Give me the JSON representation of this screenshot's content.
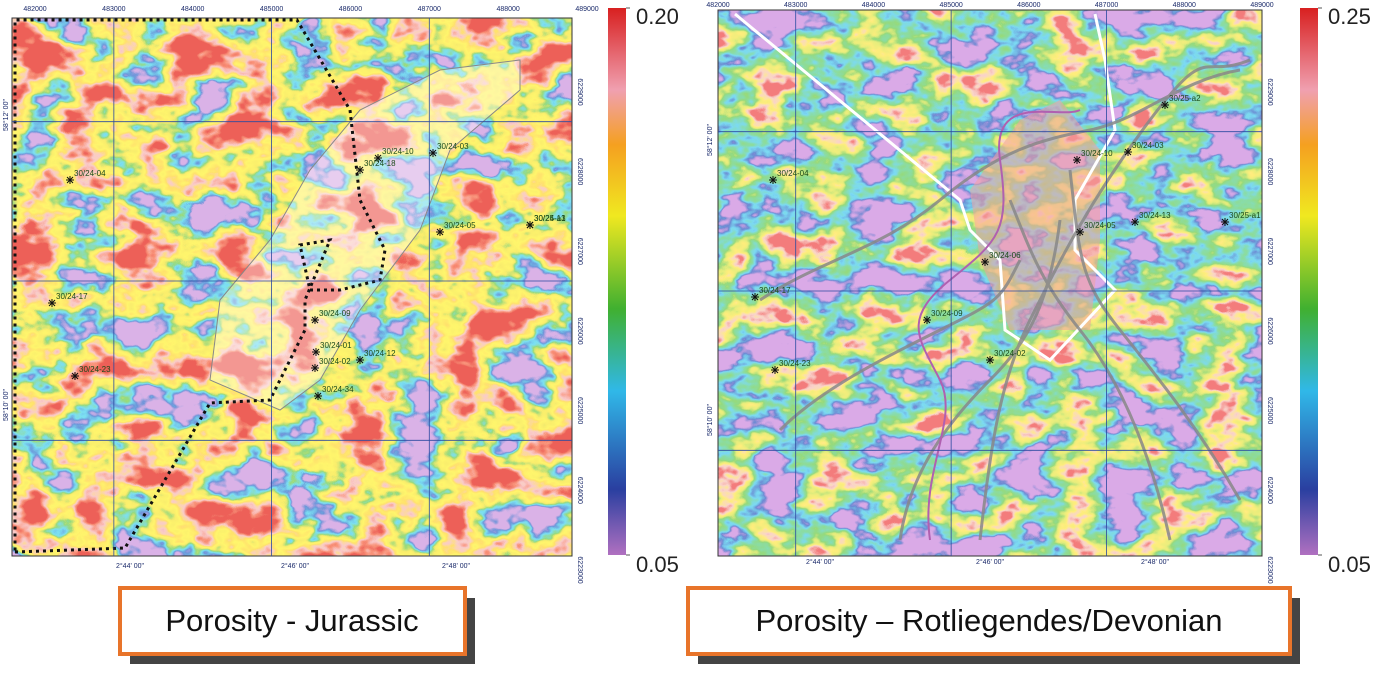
{
  "panels": [
    {
      "caption": "Porosity - Jurassic",
      "colorbar": {
        "top": {
          "value": 0.2,
          "label": "0.20"
        },
        "bottom": {
          "value": 0.05,
          "label": "0.05"
        }
      },
      "eastings": [
        482000,
        483000,
        484000,
        485000,
        486000,
        487000,
        488000,
        489000
      ],
      "northings": [
        6229000,
        6228000,
        6227000,
        6226000,
        6225000,
        6224000,
        6223000
      ],
      "longitudes": [
        "2°44' 00\"",
        "2°46' 00\"",
        "2°48' 00\""
      ],
      "latitudes": [
        "58°12' 00\"",
        "58°10' 00\""
      ],
      "wells": [
        "30/24-04",
        "30/24-17",
        "30/24-23",
        "30/24-10",
        "30/24-03",
        "30/24-18",
        "30/24-05",
        "30/24-13",
        "30/25-a1",
        "30/24-09",
        "30/24-01",
        "30/24-02",
        "30/24-12",
        "30/24-34"
      ]
    },
    {
      "caption": "Porosity – Rotliegendes/Devonian",
      "colorbar": {
        "top": {
          "value": 0.25,
          "label": "0.25"
        },
        "bottom": {
          "value": 0.05,
          "label": "0.05"
        }
      },
      "eastings": [
        482000,
        483000,
        484000,
        485000,
        486000,
        487000,
        488000,
        489000
      ],
      "northings": [
        6229000,
        6228000,
        6227000,
        6226000,
        6225000,
        6224000,
        6223000
      ],
      "longitudes": [
        "2°44' 00\"",
        "2°46' 00\"",
        "2°48' 00\""
      ],
      "latitudes": [
        "58°12' 00\"",
        "58°10' 00\""
      ],
      "wells": [
        "30/24-04",
        "30/24-17",
        "30/24-23",
        "30/24-10",
        "30/24-03",
        "30/24-05",
        "30/24-13",
        "30/25-a1",
        "30/25-a2",
        "30/24-09",
        "30/24-02",
        "30/24-06"
      ]
    }
  ]
}
